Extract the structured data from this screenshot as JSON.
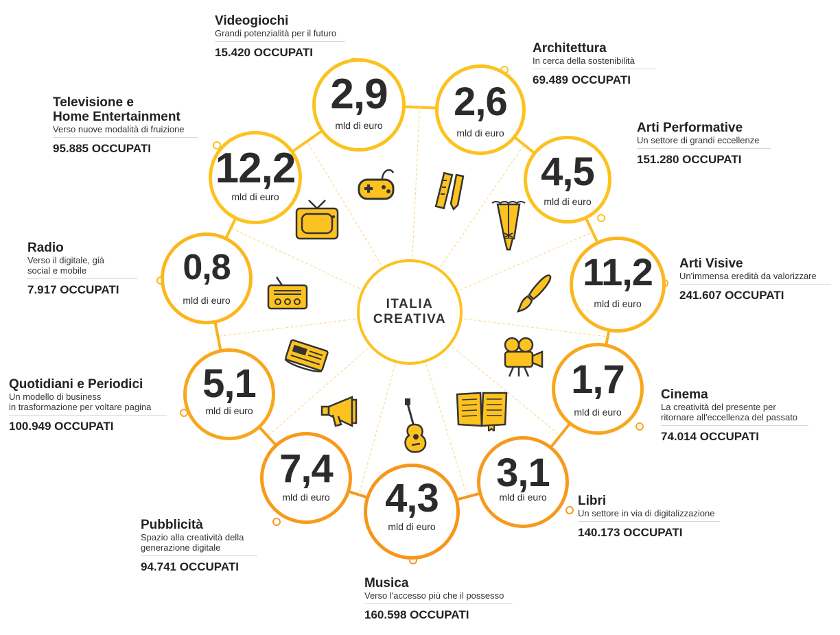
{
  "center": {
    "title": "ITALIA\nCREATIVA"
  },
  "colors": {
    "yellow": "#fcc21f",
    "orange": "#f6971c",
    "icon_fill": "#fcc21f",
    "icon_stroke": "#333333"
  },
  "sectors": [
    {
      "id": "videogiochi",
      "value": "2,9",
      "unit": "mld di euro",
      "name": "Videogiochi",
      "desc": "Grandi potenzialità per il futuro",
      "count": "15.420 OCCUPATI",
      "icon": "gamepad-icon"
    },
    {
      "id": "architettura",
      "value": "2,6",
      "unit": "mld di euro",
      "name": "Architettura",
      "desc": "In cerca della sostenibilità",
      "count": "69.489 OCCUPATI",
      "icon": "ruler-pencil-icon"
    },
    {
      "id": "arti-performative",
      "value": "4,5",
      "unit": "mld di euro",
      "name": "Arti Performative",
      "desc": "Un settore di grandi eccellenze",
      "count": "151.280 OCCUPATI",
      "icon": "ballet-legs-icon"
    },
    {
      "id": "arti-visive",
      "value": "11,2",
      "unit": "mld di euro",
      "name": "Arti Visive",
      "desc": "Un'immensa eredità da valorizzare",
      "count": "241.607 OCCUPATI",
      "icon": "paintbrush-icon"
    },
    {
      "id": "cinema",
      "value": "1,7",
      "unit": "mld di euro",
      "name": "Cinema",
      "desc": "La creatività del presente per\nritornare all'eccellenza del passato",
      "count": "74.014 OCCUPATI",
      "icon": "movie-camera-icon"
    },
    {
      "id": "libri",
      "value": "3,1",
      "unit": "mld di euro",
      "name": "Libri",
      "desc": "Un settore in via di digitalizzazione",
      "count": "140.173 OCCUPATI",
      "icon": "open-book-icon"
    },
    {
      "id": "musica",
      "value": "4,3",
      "unit": "mld di euro",
      "name": "Musica",
      "desc": "Verso l'accesso più che il possesso",
      "count": "160.598 OCCUPATI",
      "icon": "guitar-icon"
    },
    {
      "id": "pubblicita",
      "value": "7,4",
      "unit": "mld di euro",
      "name": "Pubblicità",
      "desc": "Spazio alla creatività della\ngenerazione digitale",
      "count": "94.741 OCCUPATI",
      "icon": "megaphone-icon"
    },
    {
      "id": "quotidiani",
      "value": "5,1",
      "unit": "mld di euro",
      "name": "Quotidiani e Periodici",
      "desc": "Un modello di business\nin trasformazione per voltare pagina",
      "count": "100.949 OCCUPATI",
      "icon": "newspaper-icon"
    },
    {
      "id": "radio",
      "value": "0,8",
      "unit": "mld di euro",
      "name": "Radio",
      "desc": "Verso il digitale, già\nsocial e mobile",
      "count": "7.917 OCCUPATI",
      "icon": "radio-icon"
    },
    {
      "id": "televisione",
      "value": "12,2",
      "unit": "mld di euro",
      "name": "Televisione e\nHome Entertainment",
      "desc": "Verso nuove modalità di fruizione",
      "count": "95.885 OCCUPATI",
      "icon": "tv-icon"
    }
  ]
}
